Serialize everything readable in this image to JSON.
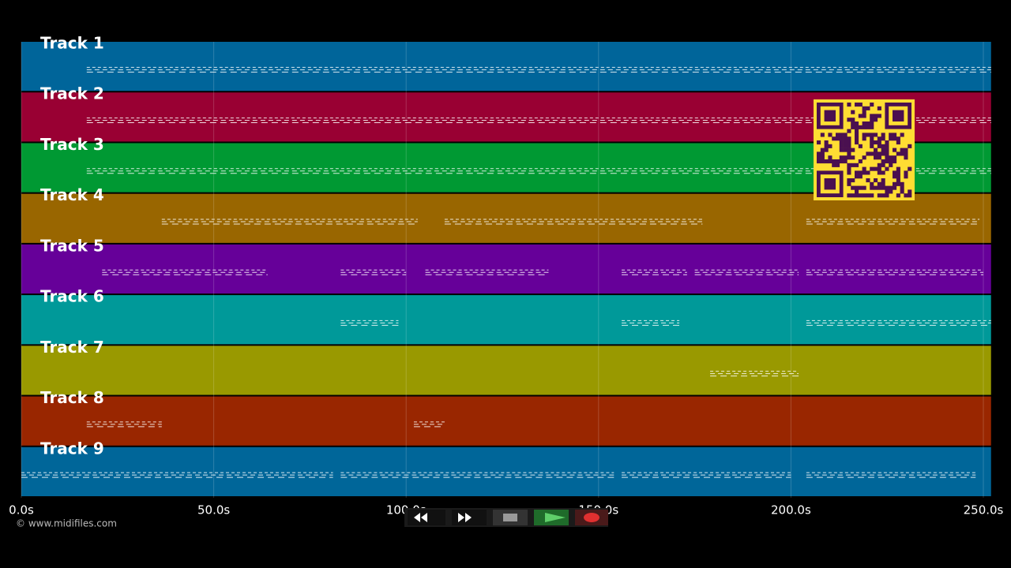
{
  "chart_data": {
    "type": "timeline",
    "xlim": [
      0,
      252
    ],
    "xticks": [
      {
        "value": 0,
        "label": "0.0s"
      },
      {
        "value": 50,
        "label": "50.0s"
      },
      {
        "value": 100,
        "label": "100.0s"
      },
      {
        "value": 150,
        "label": "150.0s"
      },
      {
        "value": 200,
        "label": "200.0s"
      },
      {
        "value": 250,
        "label": "250.0s"
      }
    ],
    "grid": true,
    "series": [
      {
        "name": "Track 1",
        "color": "#00659a",
        "spans": [
          [
            17,
            252
          ]
        ]
      },
      {
        "name": "Track 2",
        "color": "#990033",
        "spans": [
          [
            17,
            252
          ]
        ]
      },
      {
        "name": "Track 3",
        "color": "#009933",
        "spans": [
          [
            17,
            252
          ]
        ]
      },
      {
        "name": "Track 4",
        "color": "#996600",
        "spans": [
          [
            36.5,
            103
          ],
          [
            110,
            177
          ],
          [
            204,
            249
          ]
        ]
      },
      {
        "name": "Track 5",
        "color": "#660099",
        "spans": [
          [
            21,
            64
          ],
          [
            83,
            100
          ],
          [
            105,
            137
          ],
          [
            156,
            173
          ],
          [
            175,
            202
          ],
          [
            204,
            250
          ]
        ]
      },
      {
        "name": "Track 6",
        "color": "#009999",
        "spans": [
          [
            83,
            98
          ],
          [
            156,
            171
          ],
          [
            204,
            252
          ]
        ]
      },
      {
        "name": "Track 7",
        "color": "#999900",
        "spans": [
          [
            179,
            202
          ]
        ]
      },
      {
        "name": "Track 8",
        "color": "#992600",
        "spans": [
          [
            17,
            36.5
          ],
          [
            102,
            110
          ]
        ]
      },
      {
        "name": "Track 9",
        "color": "#006699",
        "spans": [
          [
            0,
            81
          ],
          [
            83,
            154
          ],
          [
            156,
            200
          ],
          [
            204,
            248
          ]
        ]
      }
    ],
    "footer": "© www.midifiles.com"
  }
}
